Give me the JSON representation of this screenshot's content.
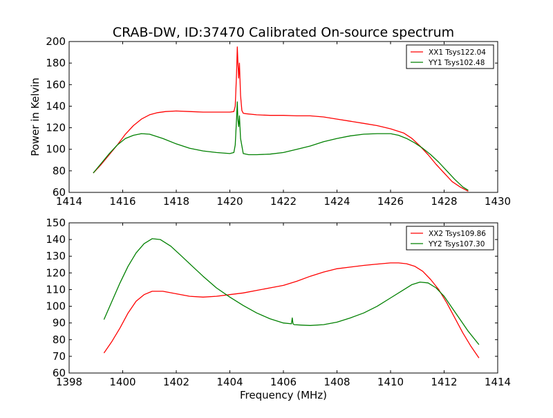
{
  "figure": {
    "title": "CRAB-DW, ID:37470 Calibrated On-source spectrum",
    "xlabel": "Frequency (MHz)"
  },
  "chart_data": [
    {
      "type": "line",
      "title": "CRAB-DW, ID:37470 Calibrated On-source spectrum",
      "xlabel": "",
      "ylabel": "Power in Kelvin",
      "xlim": [
        1414,
        1430
      ],
      "ylim": [
        60,
        200
      ],
      "xticks": [
        1414,
        1416,
        1418,
        1420,
        1422,
        1424,
        1426,
        1428,
        1430
      ],
      "yticks": [
        60,
        80,
        100,
        120,
        140,
        160,
        180,
        200
      ],
      "grid": false,
      "legend_position": "top-right",
      "series": [
        {
          "name": "XX1 Tsys122.04",
          "color": "#ff0000",
          "x": [
            1414.9,
            1415.2,
            1415.5,
            1415.8,
            1416.1,
            1416.4,
            1416.7,
            1417.0,
            1417.3,
            1417.6,
            1418.0,
            1418.5,
            1419.0,
            1419.5,
            1420.0,
            1420.15,
            1420.2,
            1420.25,
            1420.28,
            1420.3,
            1420.33,
            1420.36,
            1420.4,
            1420.45,
            1420.5,
            1420.6,
            1421.0,
            1421.5,
            1422.0,
            1422.5,
            1423.0,
            1423.5,
            1424.0,
            1424.5,
            1425.0,
            1425.5,
            1426.0,
            1426.5,
            1426.8,
            1427.1,
            1427.4,
            1427.7,
            1428.0,
            1428.3,
            1428.6,
            1428.9
          ],
          "y": [
            78,
            86,
            95,
            104,
            114,
            122,
            128,
            132,
            134,
            135,
            135.5,
            135,
            134.5,
            134.5,
            134.5,
            135,
            140,
            170,
            195,
            182,
            166,
            180,
            150,
            136,
            133.5,
            133,
            132,
            131.5,
            131.5,
            131,
            131,
            130,
            128,
            126,
            124,
            122,
            119,
            115,
            110,
            103,
            95,
            86,
            78,
            70,
            65,
            61
          ]
        },
        {
          "name": "YY1 Tsys102.48",
          "color": "#008000",
          "x": [
            1414.9,
            1415.2,
            1415.5,
            1415.8,
            1416.1,
            1416.4,
            1416.7,
            1417.0,
            1417.5,
            1418.0,
            1418.5,
            1419.0,
            1419.5,
            1420.0,
            1420.15,
            1420.2,
            1420.25,
            1420.28,
            1420.3,
            1420.33,
            1420.36,
            1420.4,
            1420.5,
            1420.7,
            1421.0,
            1421.5,
            1422.0,
            1422.5,
            1423.0,
            1423.5,
            1424.0,
            1424.5,
            1425.0,
            1425.5,
            1426.0,
            1426.3,
            1426.6,
            1426.9,
            1427.2,
            1427.5,
            1427.8,
            1428.1,
            1428.4,
            1428.7,
            1428.9
          ],
          "y": [
            78,
            87,
            96,
            104,
            110,
            113,
            114.5,
            114,
            110,
            105,
            101,
            98.5,
            97,
            96,
            97,
            104,
            128,
            144,
            128,
            121,
            131,
            110,
            96,
            95,
            95,
            95.5,
            97,
            100,
            103,
            107,
            110,
            112.5,
            114,
            114.5,
            114.5,
            113,
            110,
            106,
            101,
            95,
            88,
            80,
            72,
            65,
            62
          ]
        }
      ]
    },
    {
      "type": "line",
      "title": "",
      "xlabel": "Frequency (MHz)",
      "ylabel": "",
      "xlim": [
        1398,
        1414
      ],
      "ylim": [
        60,
        150
      ],
      "xticks": [
        1398,
        1400,
        1402,
        1404,
        1406,
        1408,
        1410,
        1412,
        1414
      ],
      "yticks": [
        60,
        70,
        80,
        90,
        100,
        110,
        120,
        130,
        140,
        150
      ],
      "grid": false,
      "legend_position": "top-right",
      "series": [
        {
          "name": "XX2 Tsys109.86",
          "color": "#ff0000",
          "x": [
            1399.3,
            1399.6,
            1399.9,
            1400.2,
            1400.5,
            1400.8,
            1401.1,
            1401.5,
            1402.0,
            1402.5,
            1403.0,
            1403.5,
            1404.0,
            1404.5,
            1405.0,
            1405.5,
            1406.0,
            1406.5,
            1407.0,
            1407.5,
            1408.0,
            1408.5,
            1409.0,
            1409.5,
            1410.0,
            1410.3,
            1410.6,
            1410.9,
            1411.2,
            1411.5,
            1411.8,
            1412.1,
            1412.4,
            1412.7,
            1413.0,
            1413.3
          ],
          "y": [
            72,
            79,
            87,
            96,
            103,
            107,
            109,
            109,
            107.5,
            106,
            105.5,
            106,
            107,
            108,
            109.5,
            111,
            112.5,
            115,
            118,
            120.5,
            122.5,
            123.5,
            124.5,
            125.3,
            126,
            126,
            125.5,
            124,
            121,
            116,
            110,
            102,
            93,
            84,
            76,
            69
          ]
        },
        {
          "name": "YY2 Tsys107.30",
          "color": "#008000",
          "x": [
            1399.3,
            1399.6,
            1399.9,
            1400.2,
            1400.5,
            1400.8,
            1401.1,
            1401.4,
            1401.8,
            1402.2,
            1402.6,
            1403.0,
            1403.5,
            1404.0,
            1404.5,
            1405.0,
            1405.5,
            1406.0,
            1406.3,
            1406.33,
            1406.36,
            1406.4,
            1406.7,
            1407.0,
            1407.5,
            1408.0,
            1408.5,
            1409.0,
            1409.5,
            1410.0,
            1410.5,
            1410.8,
            1411.1,
            1411.4,
            1411.7,
            1412.0,
            1412.3,
            1412.6,
            1412.9,
            1413.3
          ],
          "y": [
            92,
            103,
            114,
            124,
            132,
            137.5,
            140.5,
            140,
            136,
            130,
            124,
            118,
            111,
            105.5,
            100.5,
            96,
            92.5,
            90,
            89.5,
            93,
            89.5,
            89,
            88.7,
            88.5,
            89,
            90.5,
            93,
            96,
            100,
            105,
            110,
            113,
            114.5,
            114,
            111,
            106,
            99,
            92,
            85,
            77
          ]
        }
      ]
    }
  ]
}
